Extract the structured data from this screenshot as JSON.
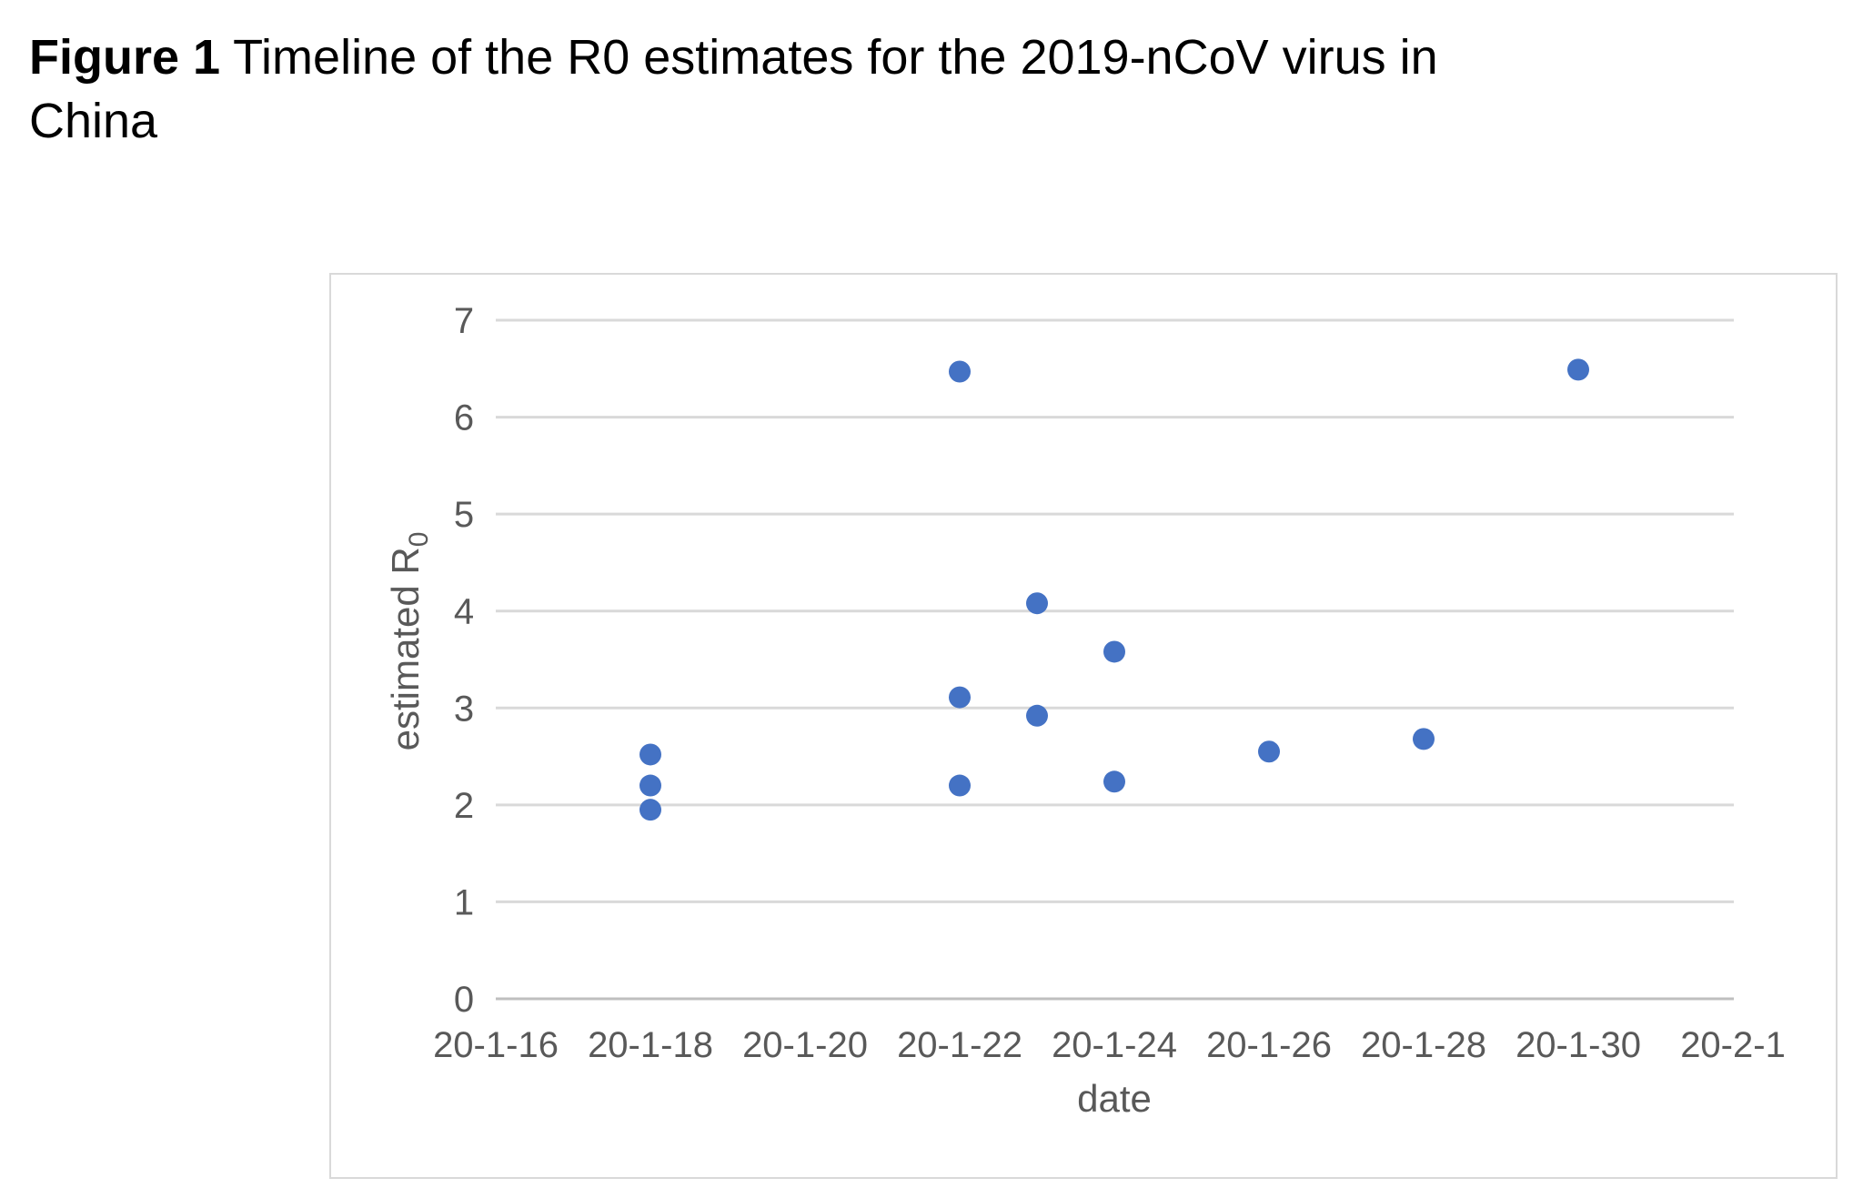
{
  "caption": {
    "label": "Figure 1",
    "text": " Timeline of the R0 estimates for the 2019-nCoV virus in China"
  },
  "chart_data": {
    "type": "scatter",
    "title": "",
    "xlabel": "date",
    "ylabel": "estimated R",
    "ylabel_subscript": "0",
    "x_tick_labels": [
      "20-1-16",
      "20-1-18",
      "20-1-20",
      "20-1-22",
      "20-1-24",
      "20-1-26",
      "20-1-28",
      "20-1-30",
      "20-2-1"
    ],
    "y_tick_labels": [
      "0",
      "1",
      "2",
      "3",
      "4",
      "5",
      "6",
      "7"
    ],
    "ylim": [
      0,
      7
    ],
    "xlim": [
      "2020-01-16",
      "2020-02-01"
    ],
    "grid": "horizontal",
    "marker_color": "#4472c4",
    "points": [
      {
        "x": "2020-01-18",
        "y": 2.52
      },
      {
        "x": "2020-01-18",
        "y": 2.2
      },
      {
        "x": "2020-01-18",
        "y": 1.95
      },
      {
        "x": "2020-01-22",
        "y": 6.47
      },
      {
        "x": "2020-01-22",
        "y": 3.11
      },
      {
        "x": "2020-01-22",
        "y": 2.2
      },
      {
        "x": "2020-01-23",
        "y": 4.08
      },
      {
        "x": "2020-01-23",
        "y": 2.92
      },
      {
        "x": "2020-01-24",
        "y": 3.58
      },
      {
        "x": "2020-01-24",
        "y": 2.24
      },
      {
        "x": "2020-01-26",
        "y": 2.55
      },
      {
        "x": "2020-01-28",
        "y": 2.68
      },
      {
        "x": "2020-01-30",
        "y": 6.49
      }
    ]
  }
}
